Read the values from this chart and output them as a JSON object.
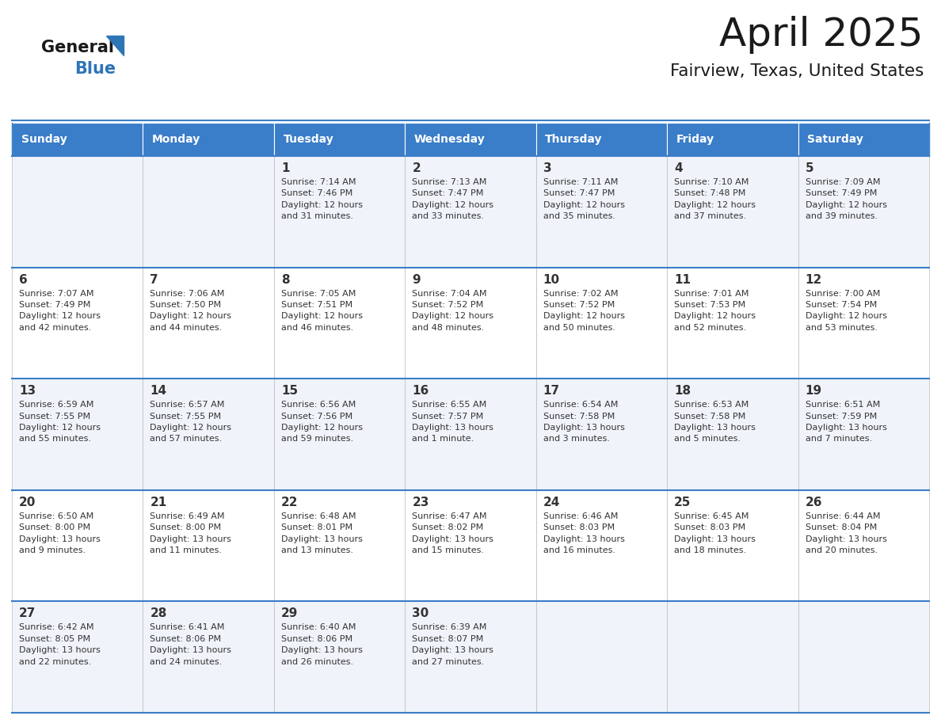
{
  "title": "April 2025",
  "subtitle": "Fairview, Texas, United States",
  "header_bg": "#3A7DC9",
  "header_text_color": "#FFFFFF",
  "row_bg_odd": "#F0F4FA",
  "row_bg_even": "#FFFFFF",
  "day_names": [
    "Sunday",
    "Monday",
    "Tuesday",
    "Wednesday",
    "Thursday",
    "Friday",
    "Saturday"
  ],
  "weeks": [
    [
      {
        "day": "",
        "info": ""
      },
      {
        "day": "",
        "info": ""
      },
      {
        "day": "1",
        "info": "Sunrise: 7:14 AM\nSunset: 7:46 PM\nDaylight: 12 hours\nand 31 minutes."
      },
      {
        "day": "2",
        "info": "Sunrise: 7:13 AM\nSunset: 7:47 PM\nDaylight: 12 hours\nand 33 minutes."
      },
      {
        "day": "3",
        "info": "Sunrise: 7:11 AM\nSunset: 7:47 PM\nDaylight: 12 hours\nand 35 minutes."
      },
      {
        "day": "4",
        "info": "Sunrise: 7:10 AM\nSunset: 7:48 PM\nDaylight: 12 hours\nand 37 minutes."
      },
      {
        "day": "5",
        "info": "Sunrise: 7:09 AM\nSunset: 7:49 PM\nDaylight: 12 hours\nand 39 minutes."
      }
    ],
    [
      {
        "day": "6",
        "info": "Sunrise: 7:07 AM\nSunset: 7:49 PM\nDaylight: 12 hours\nand 42 minutes."
      },
      {
        "day": "7",
        "info": "Sunrise: 7:06 AM\nSunset: 7:50 PM\nDaylight: 12 hours\nand 44 minutes."
      },
      {
        "day": "8",
        "info": "Sunrise: 7:05 AM\nSunset: 7:51 PM\nDaylight: 12 hours\nand 46 minutes."
      },
      {
        "day": "9",
        "info": "Sunrise: 7:04 AM\nSunset: 7:52 PM\nDaylight: 12 hours\nand 48 minutes."
      },
      {
        "day": "10",
        "info": "Sunrise: 7:02 AM\nSunset: 7:52 PM\nDaylight: 12 hours\nand 50 minutes."
      },
      {
        "day": "11",
        "info": "Sunrise: 7:01 AM\nSunset: 7:53 PM\nDaylight: 12 hours\nand 52 minutes."
      },
      {
        "day": "12",
        "info": "Sunrise: 7:00 AM\nSunset: 7:54 PM\nDaylight: 12 hours\nand 53 minutes."
      }
    ],
    [
      {
        "day": "13",
        "info": "Sunrise: 6:59 AM\nSunset: 7:55 PM\nDaylight: 12 hours\nand 55 minutes."
      },
      {
        "day": "14",
        "info": "Sunrise: 6:57 AM\nSunset: 7:55 PM\nDaylight: 12 hours\nand 57 minutes."
      },
      {
        "day": "15",
        "info": "Sunrise: 6:56 AM\nSunset: 7:56 PM\nDaylight: 12 hours\nand 59 minutes."
      },
      {
        "day": "16",
        "info": "Sunrise: 6:55 AM\nSunset: 7:57 PM\nDaylight: 13 hours\nand 1 minute."
      },
      {
        "day": "17",
        "info": "Sunrise: 6:54 AM\nSunset: 7:58 PM\nDaylight: 13 hours\nand 3 minutes."
      },
      {
        "day": "18",
        "info": "Sunrise: 6:53 AM\nSunset: 7:58 PM\nDaylight: 13 hours\nand 5 minutes."
      },
      {
        "day": "19",
        "info": "Sunrise: 6:51 AM\nSunset: 7:59 PM\nDaylight: 13 hours\nand 7 minutes."
      }
    ],
    [
      {
        "day": "20",
        "info": "Sunrise: 6:50 AM\nSunset: 8:00 PM\nDaylight: 13 hours\nand 9 minutes."
      },
      {
        "day": "21",
        "info": "Sunrise: 6:49 AM\nSunset: 8:00 PM\nDaylight: 13 hours\nand 11 minutes."
      },
      {
        "day": "22",
        "info": "Sunrise: 6:48 AM\nSunset: 8:01 PM\nDaylight: 13 hours\nand 13 minutes."
      },
      {
        "day": "23",
        "info": "Sunrise: 6:47 AM\nSunset: 8:02 PM\nDaylight: 13 hours\nand 15 minutes."
      },
      {
        "day": "24",
        "info": "Sunrise: 6:46 AM\nSunset: 8:03 PM\nDaylight: 13 hours\nand 16 minutes."
      },
      {
        "day": "25",
        "info": "Sunrise: 6:45 AM\nSunset: 8:03 PM\nDaylight: 13 hours\nand 18 minutes."
      },
      {
        "day": "26",
        "info": "Sunrise: 6:44 AM\nSunset: 8:04 PM\nDaylight: 13 hours\nand 20 minutes."
      }
    ],
    [
      {
        "day": "27",
        "info": "Sunrise: 6:42 AM\nSunset: 8:05 PM\nDaylight: 13 hours\nand 22 minutes."
      },
      {
        "day": "28",
        "info": "Sunrise: 6:41 AM\nSunset: 8:06 PM\nDaylight: 13 hours\nand 24 minutes."
      },
      {
        "day": "29",
        "info": "Sunrise: 6:40 AM\nSunset: 8:06 PM\nDaylight: 13 hours\nand 26 minutes."
      },
      {
        "day": "30",
        "info": "Sunrise: 6:39 AM\nSunset: 8:07 PM\nDaylight: 13 hours\nand 27 minutes."
      },
      {
        "day": "",
        "info": ""
      },
      {
        "day": "",
        "info": ""
      },
      {
        "day": "",
        "info": ""
      }
    ]
  ],
  "logo_general_color": "#1a1a1a",
  "logo_blue_color": "#2E75B6",
  "logo_triangle_color": "#2E75B6",
  "cell_text_color": "#333333",
  "divider_color": "#3A7DC9",
  "title_color": "#1a1a1a",
  "subtitle_color": "#1a1a1a"
}
